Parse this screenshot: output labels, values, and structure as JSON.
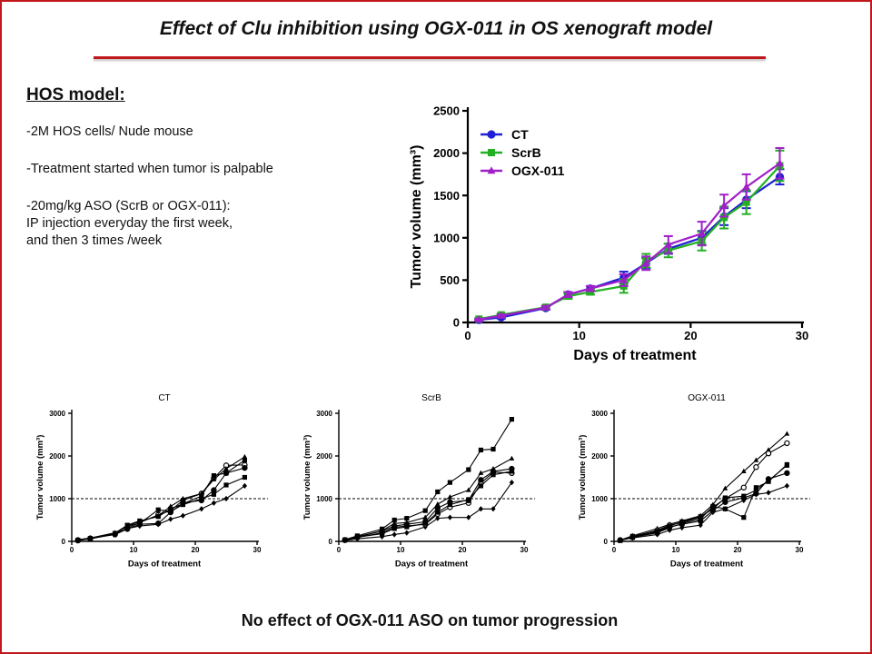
{
  "slide": {
    "title": "Effect of Clu inhibition using OGX-011 in OS xenograft model",
    "heading": "HOS model:",
    "bullets": [
      [
        "-2M  HOS cells/ Nude mouse"
      ],
      [
        "-Treatment started when tumor is palpable"
      ],
      [
        "-20mg/kg ASO (ScrB or OGX-011):",
        "IP injection everyday the first week,",
        "and then 3 times /week"
      ]
    ],
    "conclusion": "No effect of OGX-011 ASO on tumor progression"
  },
  "colors": {
    "frame": "#c0161c",
    "CT": "#1f1fd6",
    "ScrB": "#22b022",
    "OGX-011": "#a020c8",
    "individual": "#000000"
  },
  "chart_data": [
    {
      "type": "line",
      "title": "",
      "xlabel": "Days of treatment",
      "ylabel": "Tumor volume (mm³)",
      "xlim": [
        0,
        30
      ],
      "ylim": [
        0,
        2500
      ],
      "xticks": [
        0,
        10,
        20,
        30
      ],
      "yticks": [
        0,
        500,
        1000,
        1500,
        2000,
        2500
      ],
      "legend_position": "top-left",
      "error_bars": true,
      "series": [
        {
          "name": "CT",
          "color": "#1f1fd6",
          "marker": "circle",
          "x": [
            1,
            3,
            7,
            9,
            11,
            14,
            16,
            18,
            21,
            23,
            25,
            28
          ],
          "y": [
            30,
            60,
            170,
            330,
            400,
            530,
            700,
            870,
            1000,
            1250,
            1450,
            1720
          ],
          "err": [
            10,
            15,
            20,
            30,
            30,
            70,
            60,
            60,
            80,
            100,
            100,
            90
          ]
        },
        {
          "name": "ScrB",
          "color": "#22b022",
          "marker": "square",
          "x": [
            1,
            3,
            7,
            9,
            11,
            14,
            16,
            18,
            21,
            23,
            25,
            28
          ],
          "y": [
            40,
            90,
            180,
            310,
            360,
            430,
            730,
            850,
            960,
            1240,
            1420,
            1850
          ],
          "err": [
            10,
            15,
            20,
            30,
            30,
            80,
            80,
            80,
            110,
            130,
            140,
            180
          ]
        },
        {
          "name": "OGX-011",
          "color": "#a020c8",
          "marker": "triangle",
          "x": [
            1,
            3,
            7,
            9,
            11,
            14,
            16,
            18,
            21,
            23,
            25,
            28
          ],
          "y": [
            35,
            80,
            175,
            330,
            400,
            500,
            700,
            920,
            1050,
            1380,
            1600,
            1880
          ],
          "err": [
            10,
            15,
            20,
            30,
            30,
            70,
            80,
            100,
            140,
            130,
            150,
            180
          ]
        }
      ]
    },
    {
      "type": "line",
      "title": "CT",
      "xlabel": "Days of treatment",
      "ylabel": "Tumor volume (mm³)",
      "xlim": [
        0,
        30
      ],
      "ylim": [
        0,
        3000
      ],
      "xticks": [
        0,
        10,
        20,
        30
      ],
      "yticks": [
        0,
        1000,
        2000,
        3000
      ],
      "reference_line": 1000,
      "x": [
        1,
        3,
        7,
        9,
        11,
        14,
        16,
        18,
        21,
        23,
        25,
        28
      ],
      "series": [
        {
          "marker": "square",
          "y": [
            30,
            70,
            180,
            360,
            420,
            740,
            700,
            860,
            1000,
            1100,
            1320,
            1500
          ]
        },
        {
          "marker": "circle-open",
          "y": [
            20,
            60,
            170,
            310,
            440,
            620,
            720,
            960,
            1120,
            1480,
            1780,
            1790
          ]
        },
        {
          "marker": "triangle",
          "y": [
            40,
            80,
            200,
            370,
            460,
            600,
            820,
            1000,
            1120,
            1450,
            1700,
            1980
          ]
        },
        {
          "marker": "diamond",
          "y": [
            30,
            80,
            160,
            300,
            360,
            400,
            520,
            600,
            760,
            900,
            1000,
            1300
          ]
        },
        {
          "marker": "circle",
          "y": [
            30,
            70,
            160,
            290,
            400,
            420,
            680,
            900,
            960,
            1200,
            1600,
            1720
          ]
        },
        {
          "marker": "square",
          "y": [
            30,
            60,
            190,
            380,
            480,
            580,
            760,
            880,
            1060,
            1540,
            1600,
            1900
          ]
        }
      ]
    },
    {
      "type": "line",
      "title": "ScrB",
      "xlabel": "Days of treatment",
      "ylabel": "Tumor volume (mm³)",
      "xlim": [
        0,
        30
      ],
      "ylim": [
        0,
        3000
      ],
      "xticks": [
        0,
        10,
        20,
        30
      ],
      "yticks": [
        0,
        1000,
        2000,
        3000
      ],
      "reference_line": 1000,
      "x": [
        1,
        3,
        7,
        9,
        11,
        14,
        16,
        18,
        21,
        23,
        25,
        28
      ],
      "series": [
        {
          "marker": "square",
          "y": [
            40,
            130,
            290,
            500,
            540,
            720,
            1160,
            1380,
            1680,
            2140,
            2160,
            2860
          ]
        },
        {
          "marker": "triangle",
          "y": [
            40,
            100,
            250,
            420,
            440,
            560,
            870,
            1040,
            1200,
            1600,
            1700,
            1940
          ]
        },
        {
          "marker": "diamond",
          "y": [
            20,
            60,
            110,
            160,
            200,
            340,
            540,
            560,
            560,
            760,
            760,
            1380
          ]
        },
        {
          "marker": "circle-open",
          "y": [
            30,
            90,
            200,
            330,
            360,
            400,
            640,
            800,
            900,
            1360,
            1620,
            1600
          ]
        },
        {
          "marker": "circle",
          "y": [
            30,
            110,
            240,
            360,
            400,
            460,
            780,
            920,
            960,
            1440,
            1640,
            1700
          ]
        },
        {
          "marker": "square",
          "y": [
            30,
            100,
            180,
            300,
            340,
            420,
            680,
            860,
            980,
            1300,
            1560,
            1640
          ]
        }
      ]
    },
    {
      "type": "line",
      "title": "OGX-011",
      "xlabel": "Days of treatment",
      "ylabel": "Tumor volume (mm³)",
      "xlim": [
        0,
        30
      ],
      "ylim": [
        0,
        3000
      ],
      "xticks": [
        0,
        10,
        20,
        30
      ],
      "yticks": [
        0,
        1000,
        2000,
        3000
      ],
      "reference_line": 1000,
      "x": [
        1,
        3,
        7,
        9,
        11,
        14,
        16,
        18,
        21,
        23,
        25,
        28
      ],
      "series": [
        {
          "marker": "triangle",
          "y": [
            30,
            130,
            300,
            400,
            480,
            600,
            860,
            1240,
            1640,
            1900,
            2140,
            2520
          ]
        },
        {
          "marker": "circle-open",
          "y": [
            30,
            110,
            260,
            380,
            440,
            560,
            800,
            1000,
            1260,
            1740,
            2060,
            2300
          ]
        },
        {
          "marker": "square",
          "y": [
            20,
            90,
            200,
            320,
            420,
            520,
            820,
            760,
            560,
            1260,
            1400,
            1800
          ]
        },
        {
          "marker": "diamond",
          "y": [
            30,
            80,
            160,
            260,
            320,
            380,
            680,
            760,
            960,
            1100,
            1140,
            1300
          ]
        },
        {
          "marker": "circle",
          "y": [
            30,
            100,
            220,
            340,
            400,
            480,
            720,
            920,
            1020,
            1120,
            1460,
            1600
          ]
        },
        {
          "marker": "square",
          "y": [
            20,
            120,
            240,
            360,
            460,
            580,
            760,
            1020,
            1060,
            1200,
            1420,
            1780
          ]
        }
      ]
    }
  ]
}
